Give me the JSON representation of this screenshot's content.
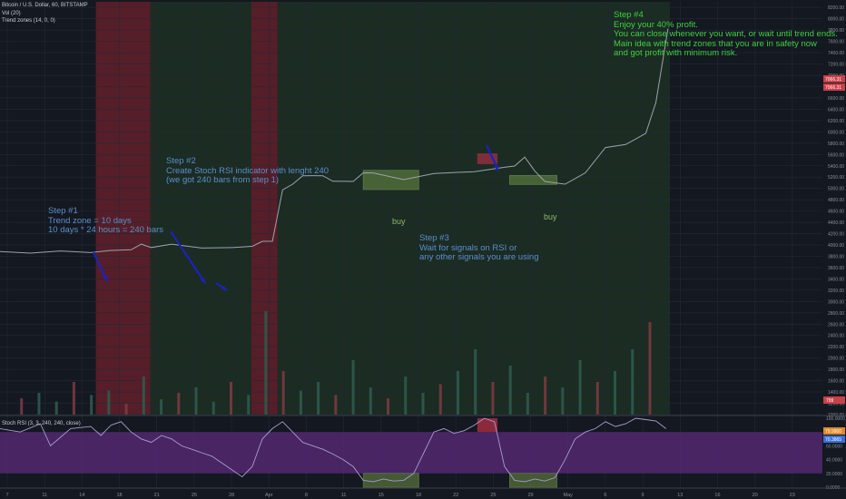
{
  "header": {
    "symbol": "Bitcoin / U.S. Dollar, 60, BITSTAMP",
    "vol_indicator": "Vol (20)",
    "trend_indicator": "Trend zones (14, 0, 0)",
    "rsi_indicator": "Stoch RSI (3, 3, 240, 240, close)"
  },
  "colors": {
    "background": "#141821",
    "price_line": "#9ea3ab",
    "red_zone": "#5a1f2a",
    "green_zone": "#1d3324",
    "rsi_band": "#5b2a7a",
    "rsi_line": "#a89cd0",
    "annotation_blue": "#5b8fc9",
    "annotation_green": "#3fd13f",
    "arrow": "#1e22b8",
    "buy_box": "#6c8f45"
  },
  "annotations": {
    "step1": [
      "Step #1",
      "Trend zone = 10 days",
      "10 days * 24 hours = 240 bars"
    ],
    "step2": [
      "Step #2",
      "Create Stoch RSI indicator with lenght 240",
      "(we got 240 bars from step 1)"
    ],
    "step3": [
      "Step #3",
      "Wait for signals on RSI or",
      "any other signals you are using"
    ],
    "step4": [
      "Step #4",
      "Enjoy your 40% profit.",
      "You can close whenever you want, or wait until trend ends.",
      "Main idea with trend zones that you are in safety now",
      "and got profit with minimum risk."
    ],
    "buy1": "buy",
    "buy2": "buy"
  },
  "chart_data": [
    {
      "type": "line",
      "title": "Bitcoin / U.S. Dollar, 60, BITSTAMP",
      "x_labels": [
        "7",
        "11",
        "14",
        "18",
        "21",
        "25",
        "28",
        "Apr",
        "8",
        "11",
        "15",
        "18",
        "22",
        "25",
        "29",
        "May",
        "6",
        "9",
        "13",
        "16",
        "20",
        "23"
      ],
      "y_ticks": [
        "8200.00",
        "8000.00",
        "7800.00",
        "7600.00",
        "7400.00",
        "7200.00",
        "7000.00",
        "6800.00",
        "6600.00",
        "6400.00",
        "6200.00",
        "6000.00",
        "5800.00",
        "5600.00",
        "5400.00",
        "5200.00",
        "5000.00",
        "4800.00",
        "4600.00",
        "4400.00",
        "4200.00",
        "4000.00",
        "3800.00",
        "3600.00",
        "3400.00",
        "3200.00",
        "3000.00",
        "2800.00",
        "2600.00",
        "2400.00",
        "2200.00",
        "2000.00",
        "1800.00",
        "1600.00",
        "1400.00",
        "1200.00",
        "1000.00"
      ],
      "ylim": [
        1000,
        8300
      ],
      "series": [
        {
          "x": [
            0,
            3,
            6,
            9,
            11,
            13,
            14,
            15,
            17,
            20,
            23,
            25,
            26,
            27,
            28,
            29,
            30,
            31,
            32,
            33,
            35,
            36,
            37,
            40,
            43,
            47,
            50,
            51,
            52,
            53,
            54,
            56,
            57,
            58,
            60,
            62,
            63,
            64,
            65,
            66.2
          ],
          "y": [
            3860,
            3880,
            3870,
            3890,
            3880,
            3940,
            3990,
            3980,
            3990,
            3970,
            3930,
            4000,
            4040,
            4090,
            4950,
            5100,
            5200,
            5250,
            5200,
            5150,
            5100,
            5300,
            5250,
            5180,
            5240,
            5320,
            5350,
            5420,
            5530,
            5330,
            5100,
            5100,
            5150,
            5300,
            5700,
            5800,
            5850,
            6000,
            6500,
            7850
          ]
        }
      ],
      "markers": [
        "7066.31",
        "7066.31"
      ],
      "red_zones_x": [
        [
          9.5,
          14.9
        ],
        [
          24.9,
          27.5
        ]
      ],
      "green_zones_x": [
        [
          14.9,
          24.9
        ],
        [
          27.5,
          66.4
        ]
      ],
      "buy_boxes": [
        {
          "label": "buy",
          "x": [
            36,
            41.5
          ],
          "y": [
            4980,
            5320
          ]
        },
        {
          "label": "buy",
          "x": [
            50.5,
            55.2
          ],
          "y": [
            5070,
            5230
          ]
        }
      ],
      "red_box": {
        "x": [
          47.3,
          49.3
        ],
        "y": [
          5430,
          5620
        ]
      },
      "x_range": [
        0,
        81.5
      ]
    },
    {
      "type": "bar",
      "title": "Vol (20)",
      "values": [
        0.15,
        0.2,
        0.12,
        0.3,
        0.18,
        0.22,
        0.1,
        0.35,
        0.14,
        0.2,
        0.25,
        0.12,
        0.3,
        0.18,
        0.95,
        0.4,
        0.22,
        0.3,
        0.18,
        0.5,
        0.25,
        0.15,
        0.35,
        0.2,
        0.28,
        0.4,
        0.6,
        0.3,
        0.45,
        0.2,
        0.35,
        0.25,
        0.5,
        0.3,
        0.4,
        0.6,
        0.85
      ],
      "badge": "799"
    },
    {
      "type": "line",
      "title": "Stoch RSI (3, 3, 240, 240, close)",
      "y_ticks": [
        "100.0000",
        "80.0000",
        "60.0000",
        "40.0000",
        "20.0000",
        "0.0000"
      ],
      "ylim": [
        0,
        100
      ],
      "band": [
        20,
        80
      ],
      "markers": [
        "79.9900",
        "70.3865"
      ],
      "series": [
        {
          "x": [
            0,
            2,
            4,
            5,
            7,
            9,
            10,
            11,
            12,
            13,
            14,
            15,
            16,
            17,
            18,
            19,
            20,
            21,
            22,
            23,
            24,
            25,
            26,
            27,
            28,
            29,
            30,
            31,
            32,
            33,
            34,
            35,
            36,
            37,
            38,
            39,
            40,
            41,
            42,
            43,
            44,
            45,
            46,
            47,
            48,
            49,
            50,
            51,
            52,
            53,
            54,
            55,
            56,
            57,
            58,
            59,
            60,
            61,
            62,
            63,
            64,
            65,
            66
          ],
          "y": [
            85,
            80,
            92,
            60,
            85,
            88,
            75,
            90,
            95,
            80,
            70,
            65,
            75,
            70,
            60,
            55,
            50,
            45,
            35,
            25,
            15,
            30,
            70,
            85,
            95,
            80,
            65,
            60,
            55,
            48,
            40,
            30,
            10,
            8,
            12,
            9,
            10,
            20,
            50,
            80,
            85,
            78,
            82,
            90,
            100,
            95,
            30,
            10,
            8,
            12,
            9,
            14,
            40,
            70,
            80,
            85,
            95,
            88,
            92,
            100,
            98,
            96,
            85
          ]
        }
      ],
      "buy_boxes_x": [
        [
          36,
          41.5
        ],
        [
          50.5,
          55.2
        ]
      ],
      "red_box_x": [
        47.3,
        49.3
      ]
    }
  ]
}
